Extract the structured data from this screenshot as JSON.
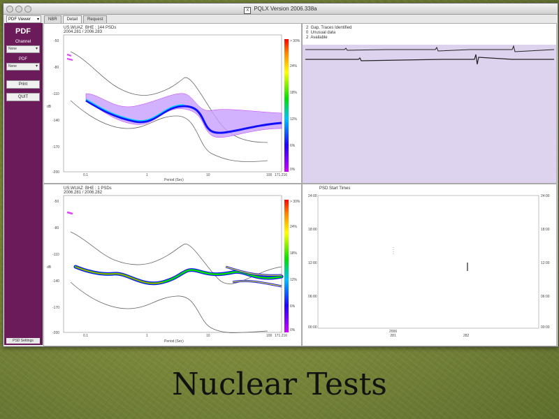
{
  "window": {
    "title": "PQLX  Version 2006.338a"
  },
  "viewer_select": "PDF Viewer",
  "tabs": [
    {
      "label": "NBR"
    },
    {
      "label": "Detail"
    },
    {
      "label": "Request"
    }
  ],
  "sidebar": {
    "heading": "PDF",
    "channel_label": "Channel",
    "channel_value": "None",
    "pdf_label": "PDF",
    "pdf_value": "None",
    "print_label": "Print",
    "quit_label": "QUIT",
    "footer": "PSD Settings"
  },
  "plots": {
    "top_left": {
      "title": "US.WUAZ  BHE : 144 PSDs\n2004.281 / 2006.283",
      "y_ticks": [
        "-50",
        "-80",
        "-110",
        "-140",
        "-170",
        "-200"
      ],
      "x_ticks": [
        "0.1",
        "1",
        "10",
        "100",
        "171.216"
      ],
      "y_axis": "dB",
      "x_axis": "Period (Sec)",
      "scale": [
        "> 30%",
        "24%",
        "18%",
        "12%",
        "6%",
        "0%"
      ]
    },
    "bottom_left": {
      "title": "US.WUAZ  BHE : 1 PSDs\n2006.281 / 2006.282",
      "y_ticks": [
        "-50",
        "-80",
        "-110",
        "-140",
        "-170",
        "-200"
      ],
      "x_ticks": [
        "0.1",
        "1",
        "10",
        "100",
        "171.216"
      ],
      "y_axis": "dB",
      "x_axis": "Period (Sec)",
      "scale": [
        "> 30%",
        "24%",
        "18%",
        "12%",
        "6%",
        "0%"
      ]
    },
    "top_right": {
      "legend": [
        "2  Gap, Traces Identified",
        "0  Unusual data",
        "2  Available"
      ]
    },
    "bottom_right": {
      "title": "PSD Start Times",
      "left_ticks": [
        "24:00",
        "18:00",
        "12:00",
        "06:00",
        "00:00"
      ],
      "right_ticks": [
        "24:00",
        "18:00",
        "12:00",
        "06:00",
        "00:00"
      ],
      "x_ticks": [
        "2006\n281",
        "282"
      ]
    }
  },
  "slide_title": "Nuclear Tests"
}
